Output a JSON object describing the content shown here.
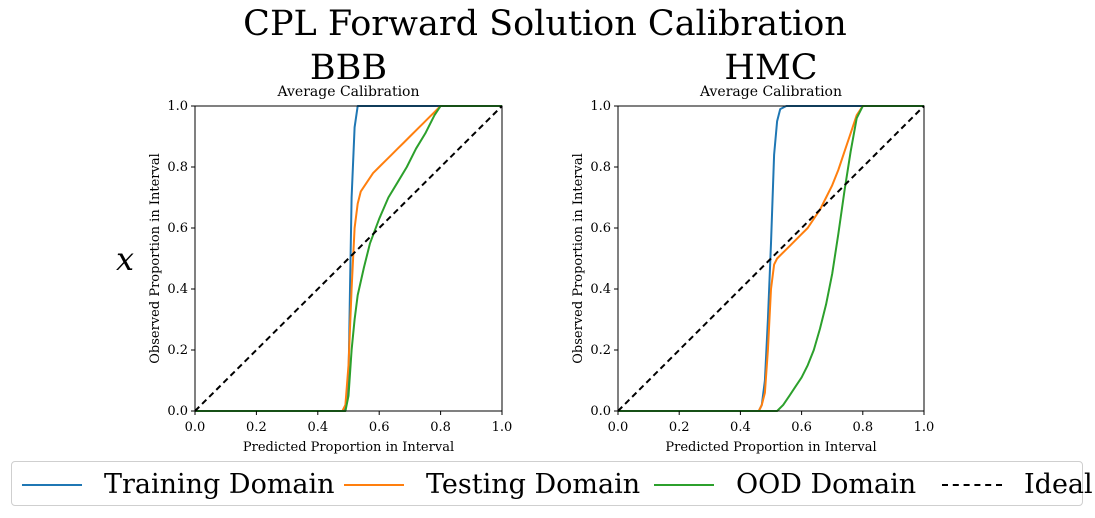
{
  "figure_title": "CPL Forward Solution Calibration",
  "row_label": "x",
  "colors": {
    "training": "#1f77b4",
    "testing": "#ff7f0e",
    "ood": "#2ca02c",
    "ideal": "#000000"
  },
  "legend": [
    {
      "label": "Training Domain",
      "series": "training",
      "style": "solid"
    },
    {
      "label": "Testing Domain",
      "series": "testing",
      "style": "solid"
    },
    {
      "label": "OOD Domain",
      "series": "ood",
      "style": "solid"
    },
    {
      "label": "Ideal",
      "series": "ideal",
      "style": "dashed"
    }
  ],
  "chart_data": [
    {
      "type": "line",
      "panel_title": "BBB",
      "title": "Average Calibration",
      "xlabel": "Predicted Proportion in Interval",
      "ylabel": "Observed Proportion in Interval",
      "xlim": [
        0,
        1
      ],
      "ylim": [
        0,
        1
      ],
      "xticks": [
        "0.0",
        "0.2",
        "0.4",
        "0.6",
        "0.8",
        "1.0"
      ],
      "yticks": [
        "0.0",
        "0.2",
        "0.4",
        "0.6",
        "0.8",
        "1.0"
      ],
      "grid": false,
      "series": [
        {
          "name": "Training Domain",
          "key": "training",
          "x": [
            0,
            0.48,
            0.49,
            0.5,
            0.505,
            0.51,
            0.52,
            0.53,
            1.0
          ],
          "y": [
            0,
            0,
            0.01,
            0.1,
            0.4,
            0.7,
            0.93,
            1.0,
            1.0
          ]
        },
        {
          "name": "Testing Domain",
          "key": "testing",
          "x": [
            0,
            0.48,
            0.49,
            0.5,
            0.51,
            0.52,
            0.53,
            0.54,
            0.56,
            0.58,
            0.6,
            0.62,
            0.64,
            0.66,
            0.68,
            0.7,
            0.72,
            0.74,
            0.76,
            0.78,
            0.8,
            1.0
          ],
          "y": [
            0,
            0,
            0.02,
            0.15,
            0.4,
            0.6,
            0.68,
            0.72,
            0.75,
            0.78,
            0.8,
            0.82,
            0.84,
            0.86,
            0.88,
            0.9,
            0.92,
            0.94,
            0.96,
            0.98,
            1.0,
            1.0
          ]
        },
        {
          "name": "OOD Domain",
          "key": "ood",
          "x": [
            0,
            0.49,
            0.5,
            0.51,
            0.52,
            0.53,
            0.55,
            0.57,
            0.6,
            0.63,
            0.66,
            0.69,
            0.72,
            0.75,
            0.78,
            0.8,
            1.0
          ],
          "y": [
            0,
            0,
            0.05,
            0.2,
            0.3,
            0.38,
            0.47,
            0.55,
            0.63,
            0.7,
            0.75,
            0.8,
            0.86,
            0.91,
            0.97,
            1.0,
            1.0
          ]
        },
        {
          "name": "Ideal",
          "key": "ideal",
          "dashed": true,
          "x": [
            0,
            1
          ],
          "y": [
            0,
            1
          ]
        }
      ]
    },
    {
      "type": "line",
      "panel_title": "HMC",
      "title": "Average Calibration",
      "xlabel": "Predicted Proportion in Interval",
      "ylabel": "Observed Proportion in Interval",
      "xlim": [
        0,
        1
      ],
      "ylim": [
        0,
        1
      ],
      "xticks": [
        "0.0",
        "0.2",
        "0.4",
        "0.6",
        "0.8",
        "1.0"
      ],
      "yticks": [
        "0.0",
        "0.2",
        "0.4",
        "0.6",
        "0.8",
        "1.0"
      ],
      "grid": false,
      "series": [
        {
          "name": "Training Domain",
          "key": "training",
          "x": [
            0,
            0.46,
            0.47,
            0.48,
            0.49,
            0.5,
            0.51,
            0.52,
            0.53,
            0.55,
            1.0
          ],
          "y": [
            0,
            0,
            0.02,
            0.1,
            0.3,
            0.55,
            0.84,
            0.95,
            0.99,
            1.0,
            1.0
          ]
        },
        {
          "name": "Testing Domain",
          "key": "testing",
          "x": [
            0,
            0.46,
            0.47,
            0.48,
            0.49,
            0.5,
            0.51,
            0.52,
            0.54,
            0.56,
            0.58,
            0.6,
            0.62,
            0.64,
            0.66,
            0.68,
            0.7,
            0.72,
            0.74,
            0.76,
            0.78,
            0.8,
            1.0
          ],
          "y": [
            0,
            0,
            0.02,
            0.06,
            0.2,
            0.4,
            0.48,
            0.5,
            0.52,
            0.54,
            0.56,
            0.58,
            0.6,
            0.63,
            0.66,
            0.7,
            0.74,
            0.79,
            0.85,
            0.91,
            0.97,
            1.0,
            1.0
          ]
        },
        {
          "name": "OOD Domain",
          "key": "ood",
          "x": [
            0,
            0.52,
            0.54,
            0.56,
            0.58,
            0.6,
            0.62,
            0.64,
            0.66,
            0.68,
            0.7,
            0.72,
            0.74,
            0.76,
            0.78,
            0.8,
            1.0
          ],
          "y": [
            0,
            0,
            0.02,
            0.05,
            0.08,
            0.11,
            0.15,
            0.2,
            0.27,
            0.35,
            0.45,
            0.58,
            0.72,
            0.85,
            0.96,
            1.0,
            1.0
          ]
        },
        {
          "name": "Ideal",
          "key": "ideal",
          "dashed": true,
          "x": [
            0,
            1
          ],
          "y": [
            0,
            1
          ]
        }
      ]
    }
  ]
}
